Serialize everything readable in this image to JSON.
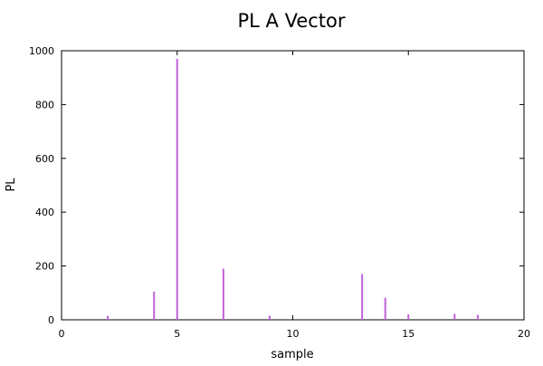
{
  "chart_data": {
    "type": "bar",
    "title": "PL A Vector",
    "xlabel": "sample",
    "ylabel": "PL",
    "xlim": [
      0,
      20
    ],
    "ylim": [
      0,
      1000
    ],
    "x_ticks": [
      "0",
      "5",
      "10",
      "15",
      "20"
    ],
    "y_ticks": [
      "0",
      "200",
      "400",
      "600",
      "800",
      "1000"
    ],
    "grid": false,
    "color": "#c060d8",
    "x": [
      2,
      4,
      5,
      7,
      9,
      13,
      14,
      15,
      17,
      18
    ],
    "values": [
      15,
      105,
      970,
      190,
      15,
      170,
      82,
      20,
      22,
      18
    ]
  }
}
